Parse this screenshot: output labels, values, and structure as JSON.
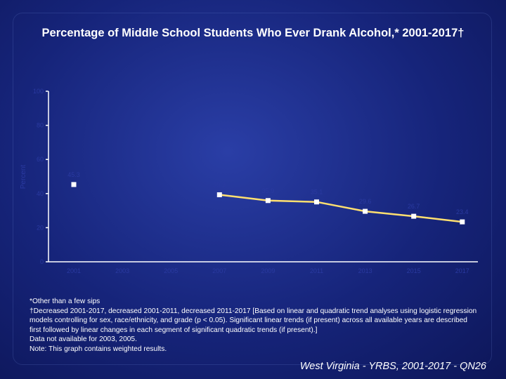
{
  "chart_data": {
    "type": "line",
    "title": "Percentage of Middle School Students Who Ever Drank Alcohol,* 2001-2017†",
    "ylabel": "Percent",
    "xlabel": "",
    "ylim": [
      0,
      100
    ],
    "yticks": [
      0,
      20,
      40,
      60,
      80,
      100
    ],
    "categories": [
      "2001",
      "2003",
      "2005",
      "2007",
      "2009",
      "2011",
      "2013",
      "2015",
      "2017"
    ],
    "series": [
      {
        "values": [
          45.3,
          null,
          null,
          39.3,
          35.9,
          35.1,
          29.6,
          26.7,
          23.4
        ],
        "labels": [
          "45.3",
          "",
          "",
          "39.3",
          "35.9",
          "35.1",
          "29.6",
          "26.7",
          "23.4"
        ]
      }
    ],
    "grid": false,
    "colors": {
      "line": "#ffe070",
      "marker": "#ffffff",
      "axis": "#ffffff",
      "labels": "#2a3aa0"
    }
  },
  "notes": [
    "*Other than a few sips",
    "†Decreased 2001-2017, decreased 2001-2011, decreased 2011-2017 [Based on linear and quadratic trend analyses using logistic regression models controlling for sex, race/ethnicity, and grade (p < 0.05). Significant linear trends (if present) across all available years are described first followed by linear changes in each segment of significant quadratic trends (if present).]",
    "Data not available for 2003, 2005.",
    "Note: This graph contains weighted results."
  ],
  "source": "West Virginia - YRBS, 2001-2017 - QN26"
}
